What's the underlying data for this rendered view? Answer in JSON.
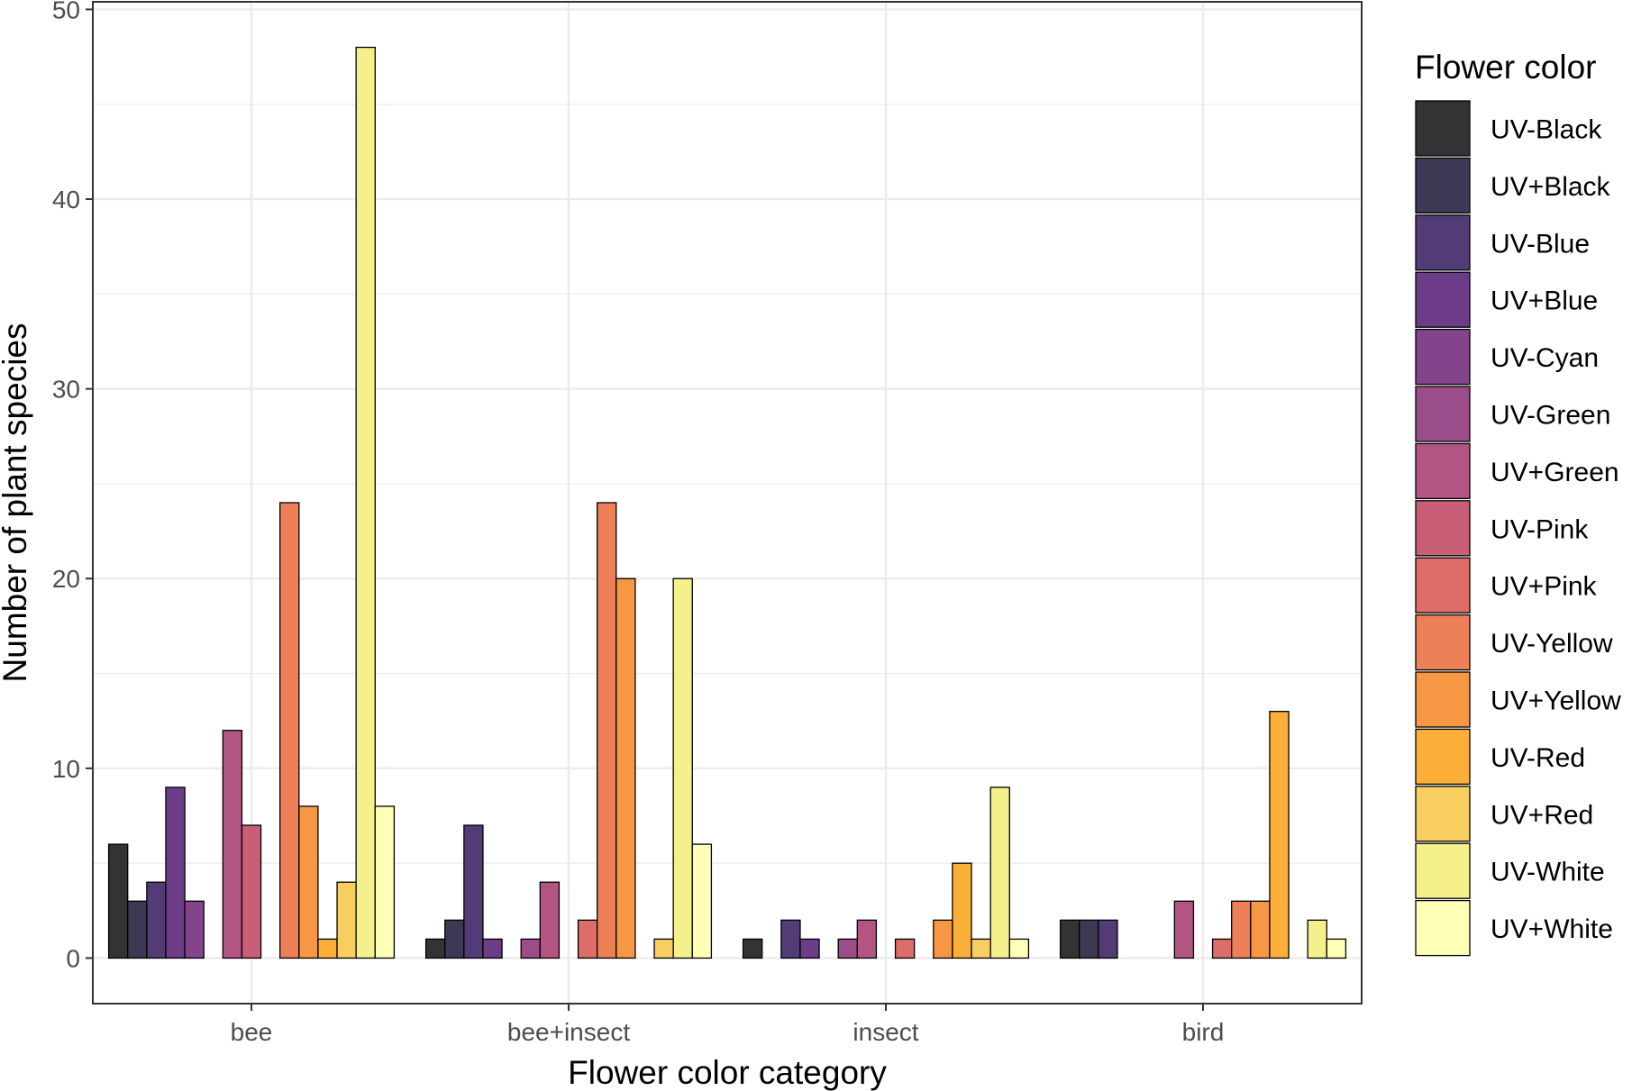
{
  "chart_data": {
    "type": "bar",
    "title": "",
    "xlabel": "Flower color category",
    "ylabel": "Number of plant species",
    "categories": [
      "bee",
      "bee+insect",
      "insect",
      "bird"
    ],
    "ylim": [
      -2.4,
      50.4
    ],
    "yticks": [
      0,
      10,
      20,
      30,
      40,
      50
    ],
    "grid": true,
    "legend": {
      "title": "Flower color",
      "position": "right"
    },
    "series": [
      {
        "name": "UV-Black",
        "color": "#000004",
        "values": [
          6,
          1,
          1,
          2
        ]
      },
      {
        "name": "UV+Black",
        "color": "#0d0829",
        "values": [
          3,
          2,
          0,
          2
        ]
      },
      {
        "name": "UV-Blue",
        "color": "#280b53",
        "values": [
          4,
          7,
          2,
          2
        ]
      },
      {
        "name": "UV+Blue",
        "color": "#470b6a",
        "values": [
          9,
          1,
          1,
          0
        ]
      },
      {
        "name": "UV-Cyan",
        "color": "#65156e",
        "values": [
          3,
          0,
          0,
          0
        ]
      },
      {
        "name": "UV-Green",
        "color": "#82206c",
        "values": [
          0,
          1,
          1,
          0
        ]
      },
      {
        "name": "UV+Green",
        "color": "#9f2a63",
        "values": [
          12,
          4,
          2,
          3
        ]
      },
      {
        "name": "UV-Pink",
        "color": "#bb3754",
        "values": [
          7,
          0,
          0,
          0
        ]
      },
      {
        "name": "UV+Pink",
        "color": "#d44842",
        "values": [
          0,
          2,
          1,
          1
        ]
      },
      {
        "name": "UV-Yellow",
        "color": "#e8602d",
        "values": [
          24,
          24,
          0,
          3
        ]
      },
      {
        "name": "UV+Yellow",
        "color": "#f57d15",
        "values": [
          8,
          20,
          2,
          3
        ]
      },
      {
        "name": "UV-Red",
        "color": "#fb9b06",
        "values": [
          1,
          0,
          5,
          13
        ]
      },
      {
        "name": "UV+Red",
        "color": "#f6c23a",
        "values": [
          4,
          1,
          1,
          0
        ]
      },
      {
        "name": "UV-White",
        "color": "#f1ed71",
        "values": [
          48,
          20,
          9,
          2
        ]
      },
      {
        "name": "UV+White",
        "color": "#fcffa4",
        "values": [
          8,
          6,
          1,
          1
        ]
      }
    ]
  }
}
